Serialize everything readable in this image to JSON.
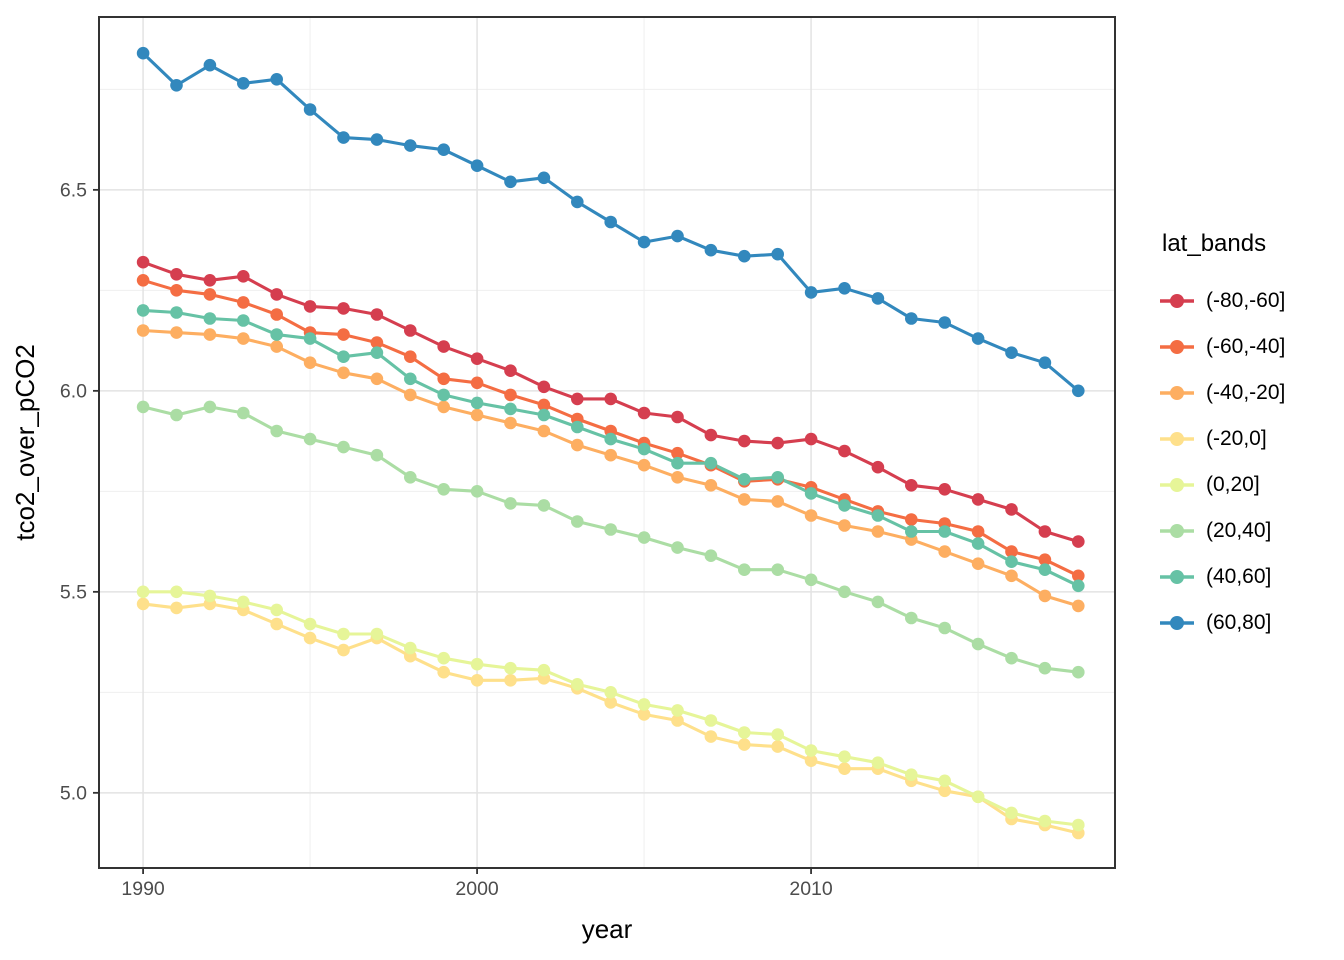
{
  "figure": {
    "background": "#ffffff"
  },
  "legend": {
    "title": "lat_bands",
    "position": "right"
  },
  "chart_data": {
    "type": "line",
    "title": "",
    "xlabel": "year",
    "ylabel": "tco2_over_pCO2",
    "x": [
      1990,
      1991,
      1992,
      1993,
      1994,
      1995,
      1996,
      1997,
      1998,
      1999,
      2000,
      2001,
      2002,
      2003,
      2004,
      2005,
      2006,
      2007,
      2008,
      2009,
      2010,
      2011,
      2012,
      2013,
      2014,
      2015,
      2016,
      2017,
      2018
    ],
    "series": [
      {
        "name": "(-80,-60]",
        "color": "#d53e4f",
        "values": [
          6.32,
          6.29,
          6.275,
          6.285,
          6.24,
          6.21,
          6.205,
          6.19,
          6.15,
          6.11,
          6.08,
          6.05,
          6.01,
          5.98,
          5.98,
          5.945,
          5.935,
          5.89,
          5.875,
          5.87,
          5.88,
          5.85,
          5.81,
          5.765,
          5.755,
          5.73,
          5.705,
          5.65,
          5.625
        ]
      },
      {
        "name": "(-60,-40]",
        "color": "#f46d43",
        "values": [
          6.275,
          6.25,
          6.24,
          6.22,
          6.19,
          6.145,
          6.14,
          6.12,
          6.085,
          6.03,
          6.02,
          5.99,
          5.965,
          5.93,
          5.9,
          5.87,
          5.845,
          5.815,
          5.775,
          5.78,
          5.76,
          5.73,
          5.7,
          5.68,
          5.67,
          5.65,
          5.6,
          5.58,
          5.54
        ]
      },
      {
        "name": "(-40,-20]",
        "color": "#fdae61",
        "values": [
          6.15,
          6.145,
          6.14,
          6.13,
          6.11,
          6.07,
          6.045,
          6.03,
          5.99,
          5.96,
          5.94,
          5.92,
          5.9,
          5.865,
          5.84,
          5.815,
          5.785,
          5.765,
          5.73,
          5.725,
          5.69,
          5.665,
          5.65,
          5.63,
          5.6,
          5.57,
          5.54,
          5.49,
          5.465
        ]
      },
      {
        "name": "(-20,0]",
        "color": "#fee08b",
        "values": [
          5.47,
          5.46,
          5.47,
          5.455,
          5.42,
          5.385,
          5.355,
          5.385,
          5.34,
          5.3,
          5.28,
          5.28,
          5.285,
          5.26,
          5.225,
          5.195,
          5.18,
          5.14,
          5.12,
          5.115,
          5.08,
          5.06,
          5.06,
          5.03,
          5.005,
          4.99,
          4.935,
          4.92,
          4.9
        ]
      },
      {
        "name": "(0,20]",
        "color": "#e6f598",
        "values": [
          5.5,
          5.5,
          5.49,
          5.475,
          5.455,
          5.42,
          5.395,
          5.395,
          5.36,
          5.335,
          5.32,
          5.31,
          5.305,
          5.27,
          5.25,
          5.22,
          5.205,
          5.18,
          5.15,
          5.145,
          5.105,
          5.09,
          5.075,
          5.045,
          5.03,
          4.99,
          4.95,
          4.93,
          4.92
        ]
      },
      {
        "name": "(20,40]",
        "color": "#abdda4",
        "values": [
          5.96,
          5.94,
          5.96,
          5.945,
          5.9,
          5.88,
          5.86,
          5.84,
          5.785,
          5.755,
          5.75,
          5.72,
          5.715,
          5.675,
          5.655,
          5.635,
          5.61,
          5.59,
          5.555,
          5.555,
          5.53,
          5.5,
          5.475,
          5.435,
          5.41,
          5.37,
          5.335,
          5.31,
          5.3
        ]
      },
      {
        "name": "(40,60]",
        "color": "#66c2a5",
        "values": [
          6.2,
          6.195,
          6.18,
          6.175,
          6.14,
          6.13,
          6.085,
          6.095,
          6.03,
          5.99,
          5.97,
          5.955,
          5.94,
          5.91,
          5.88,
          5.855,
          5.82,
          5.82,
          5.78,
          5.785,
          5.745,
          5.715,
          5.69,
          5.65,
          5.65,
          5.62,
          5.575,
          5.555,
          5.515
        ]
      },
      {
        "name": "(60,80]",
        "color": "#3288bd",
        "values": [
          6.84,
          6.76,
          6.81,
          6.765,
          6.775,
          6.7,
          6.63,
          6.625,
          6.61,
          6.6,
          6.56,
          6.52,
          6.53,
          6.47,
          6.42,
          6.37,
          6.385,
          6.35,
          6.335,
          6.34,
          6.245,
          6.255,
          6.23,
          6.18,
          6.17,
          6.13,
          6.095,
          6.07,
          6.0
        ]
      }
    ],
    "x_axis": {
      "title": "year",
      "tick_labels": [
        "1990",
        "2000",
        "2010"
      ],
      "tick_values": [
        1990,
        2000,
        2010
      ],
      "minor_ticks": [
        1995,
        2005,
        2015
      ],
      "lim": [
        1988.68,
        2019.1
      ]
    },
    "y_axis": {
      "title": "tco2_over_pCO2",
      "tick_labels": [
        "5.0",
        "5.5",
        "6.0",
        "6.5"
      ],
      "tick_values": [
        5.0,
        5.5,
        6.0,
        6.5
      ],
      "minor_ticks": [
        5.25,
        5.75,
        6.25,
        6.75
      ],
      "lim": [
        4.813,
        6.93
      ]
    },
    "legend_title": "lat_bands",
    "grid": true,
    "styles": {
      "grid_major": "#e3e3e3",
      "grid_minor": "#efefef",
      "panel_border": "#333333",
      "tick_color": "#333333",
      "tick_label_color": "#4d4d4d",
      "axis_title_color": "#000000",
      "point_radius": 6.3,
      "line_width": 3.1
    }
  }
}
